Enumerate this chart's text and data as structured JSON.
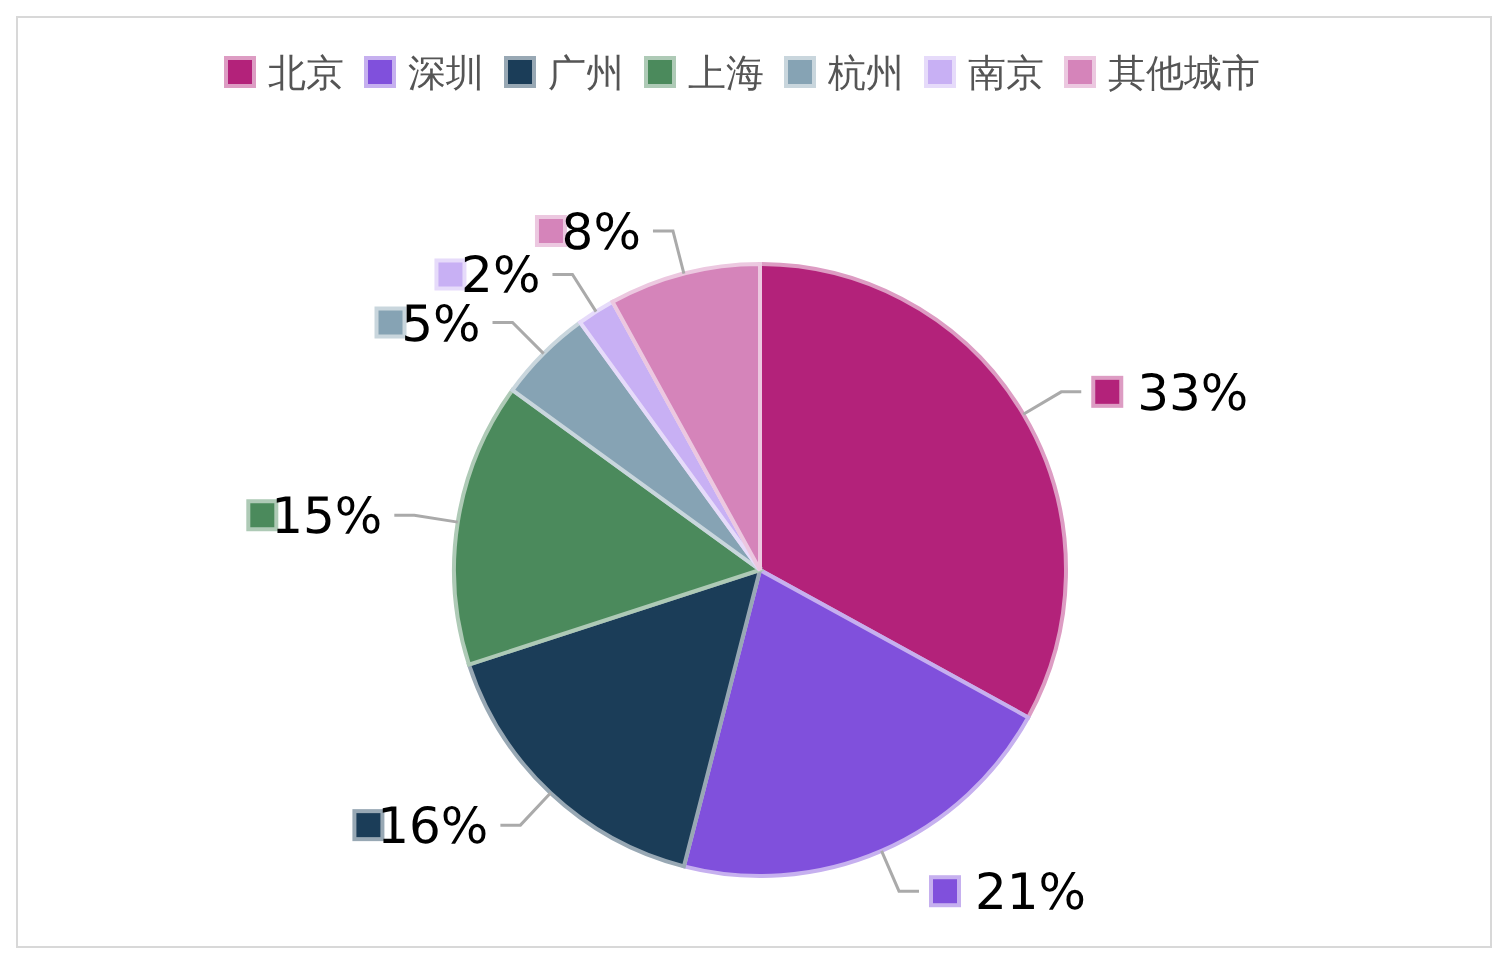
{
  "chart_data": {
    "type": "pie",
    "categories": [
      "北京",
      "深圳",
      "广州",
      "上海",
      "杭州",
      "南京",
      "其他城市"
    ],
    "values": [
      33,
      21,
      16,
      15,
      5,
      2,
      8
    ],
    "colors": [
      "#b3227a",
      "#8050dc",
      "#1b3d58",
      "#4b8a5c",
      "#86a3b4",
      "#c8b0f4",
      "#d584ba"
    ],
    "value_labels": [
      "33%",
      "21%",
      "16%",
      "15%",
      "5%",
      "2%",
      "8%"
    ],
    "legend": "top"
  }
}
